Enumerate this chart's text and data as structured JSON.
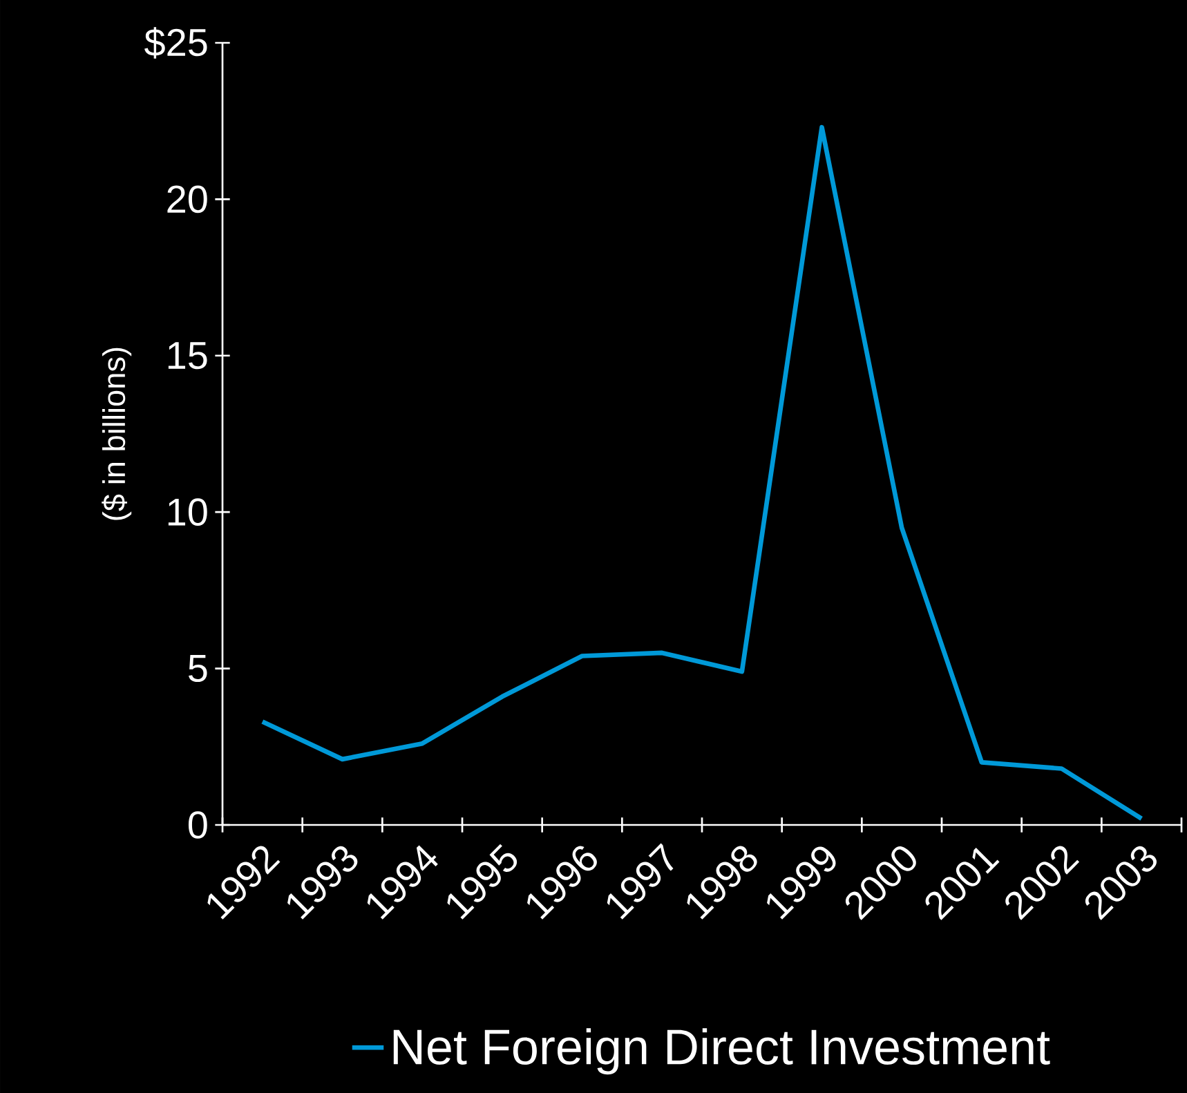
{
  "chart_data": {
    "type": "line",
    "ylabel": "($ in billions)",
    "categories": [
      "1992",
      "1993",
      "1994",
      "1995",
      "1996",
      "1997",
      "1998",
      "1999",
      "2000",
      "2001",
      "2002",
      "2003"
    ],
    "series": [
      {
        "name": "Net Foreign Direct Investment",
        "color": "#0099d8",
        "values": [
          3.3,
          2.1,
          2.6,
          4.1,
          5.4,
          5.5,
          4.9,
          22.3,
          9.5,
          2.0,
          1.8,
          0.2
        ]
      }
    ],
    "ylim": [
      0,
      25
    ],
    "yticks": [
      0,
      5,
      10,
      15,
      20,
      {
        "value": 25,
        "label": "$25"
      }
    ],
    "legend": "bottom",
    "grid": false,
    "marker": "none",
    "line_style": "solid"
  }
}
